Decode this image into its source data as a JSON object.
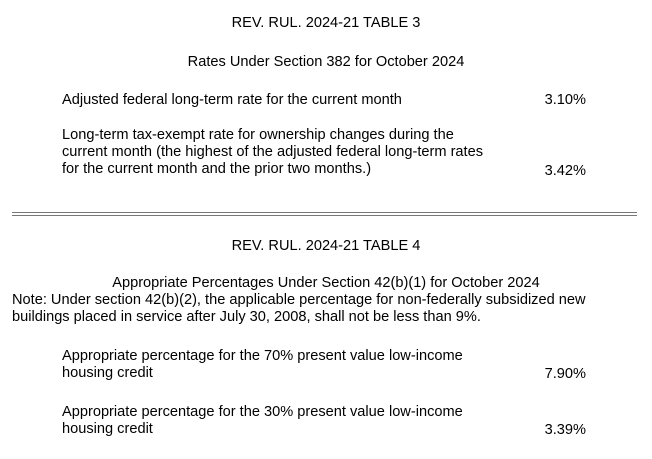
{
  "table3": {
    "title": "REV. RUL. 2024-21 TABLE 3",
    "subtitle": "Rates Under Section 382 for October 2024",
    "rows": [
      {
        "label": "Adjusted federal long-term rate for the current month",
        "value": "3.10%"
      },
      {
        "label": "Long-term tax-exempt rate for ownership changes during the current month (the highest of the adjusted federal long-term rates for the current month and the prior two months.)",
        "value": "3.42%"
      }
    ]
  },
  "table4": {
    "title": "REV. RUL. 2024-21 TABLE 4",
    "subtitle": "Appropriate Percentages Under Section 42(b)(1) for October 2024",
    "note": "Note: Under section 42(b)(2), the applicable percentage for non-federally subsidized new buildings placed in service after July 30, 2008, shall not be less than 9%.",
    "rows": [
      {
        "label": "Appropriate percentage for the 70% present value low-income housing credit",
        "value": "7.90%"
      },
      {
        "label": "Appropriate percentage for the 30% present value low-income housing credit",
        "value": "3.39%"
      }
    ]
  }
}
